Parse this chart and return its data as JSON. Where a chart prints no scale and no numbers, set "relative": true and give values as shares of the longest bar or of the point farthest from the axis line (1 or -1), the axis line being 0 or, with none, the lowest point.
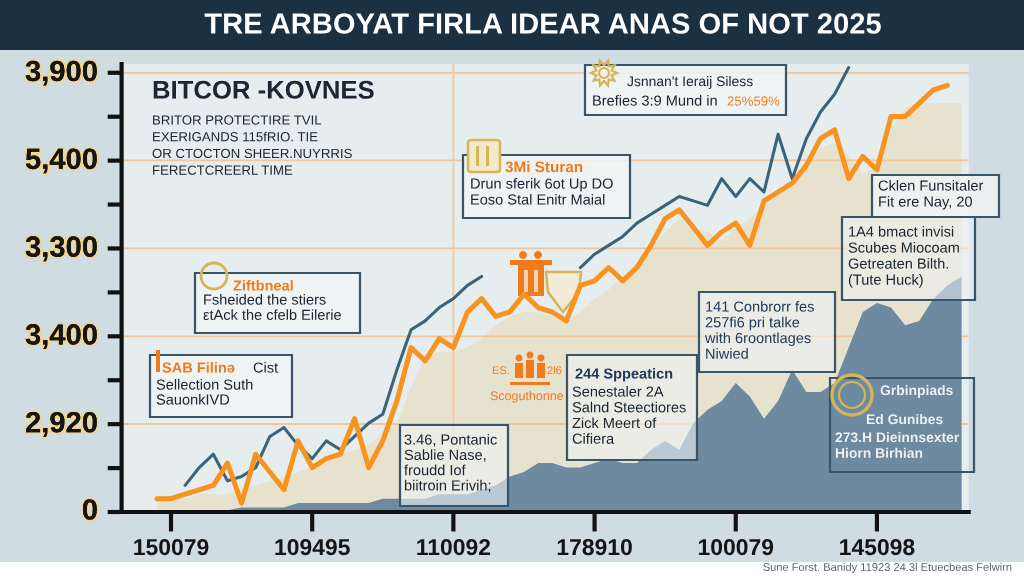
{
  "chart_data": {
    "type": "line",
    "title": "TRE ARBOYAT FIRLA IDEAR ANAS OF NOT 2025",
    "relative": true,
    "categories": [
      null,
      null,
      null,
      "150079",
      null,
      null,
      null,
      null,
      null,
      null,
      null,
      null,
      null,
      "109495",
      null,
      null,
      null,
      null,
      null,
      null,
      null,
      null,
      null,
      "110092",
      null,
      null,
      null,
      null,
      null,
      null,
      null,
      null,
      null,
      "178910",
      null,
      null,
      null,
      null,
      null,
      null,
      null,
      null,
      null,
      "100079",
      null,
      null,
      null,
      null,
      null,
      null,
      null,
      null,
      null,
      "145098",
      null,
      null,
      null,
      null,
      null,
      null
    ],
    "ref_lines": [
      {
        "axis": "x",
        "value": "110092",
        "color": "#f3c9a0"
      },
      {
        "axis": "y",
        "value": 0.198,
        "color": "#f3c597"
      },
      {
        "axis": "y",
        "value": 0.395,
        "color": "#f3c597"
      },
      {
        "axis": "y",
        "value": 0.593,
        "color": "#f3c597"
      },
      {
        "axis": "y",
        "value": 0.791,
        "color": "#f3c597"
      },
      {
        "axis": "y",
        "value": 0.988,
        "color": "#f3c597"
      }
    ],
    "series": [
      {
        "type": "area",
        "color": "#e7e2cd",
        "values": [
          null,
          null,
          0.03,
          0.03,
          0.03,
          0.04,
          0.04,
          0.04,
          0.05,
          0.06,
          0.07,
          0.08,
          0.09,
          0.1,
          0.11,
          0.13,
          0.14,
          0.15,
          0.18,
          0.2,
          0.28,
          0.35,
          0.36,
          0.36,
          0.37,
          0.39,
          0.42,
          0.44,
          0.45,
          0.45,
          0.44,
          0.43,
          0.45,
          0.48,
          0.5,
          0.53,
          0.56,
          0.59,
          0.63,
          0.66,
          0.64,
          0.63,
          0.61,
          0.64,
          0.66,
          0.69,
          0.72,
          0.75,
          0.78,
          0.82,
          0.83,
          0.8,
          0.76,
          0.78,
          0.86,
          0.91,
          0.92,
          0.92,
          0.92,
          0.92
        ]
      },
      {
        "type": "area",
        "color": "#6d8aa0",
        "values": [
          null,
          null,
          null,
          null,
          null,
          null,
          null,
          0.004,
          0.01,
          0.01,
          0.01,
          0.01,
          0.02,
          0.02,
          0.02,
          0.02,
          0.02,
          0.02,
          0.03,
          0.03,
          0.03,
          0.03,
          0.04,
          0.04,
          0.04,
          0.05,
          0.06,
          0.08,
          0.09,
          0.11,
          0.11,
          0.1,
          0.1,
          0.11,
          0.12,
          0.11,
          0.11,
          0.14,
          0.16,
          0.14,
          0.2,
          0.23,
          0.25,
          0.29,
          0.26,
          0.21,
          0.25,
          0.32,
          0.27,
          0.27,
          0.29,
          0.37,
          0.45,
          0.47,
          0.46,
          0.42,
          0.43,
          0.48,
          0.51,
          0.53
        ]
      },
      {
        "color": "#3c6479",
        "values": [
          null,
          null,
          null,
          null,
          0.06,
          0.1,
          0.13,
          0.07,
          0.08,
          0.1,
          0.17,
          0.19,
          0.15,
          0.12,
          0.16,
          0.14,
          0.17,
          0.2,
          0.22,
          0.32,
          0.41,
          0.43,
          0.46,
          0.48,
          0.51,
          0.53,
          null,
          null,
          null,
          null,
          null,
          null,
          0.55,
          0.58,
          0.6,
          0.62,
          0.65,
          0.67,
          0.69,
          0.71,
          0.7,
          0.69,
          0.75,
          0.71,
          0.75,
          0.72,
          0.85,
          0.75,
          0.84,
          0.9,
          0.94,
          1,
          null,
          null,
          null,
          null,
          null,
          null,
          null,
          null
        ]
      },
      {
        "color": "#f7931e",
        "values": [
          null,
          null,
          0.03,
          0.03,
          0.04,
          0.05,
          0.06,
          0.11,
          0.02,
          0.13,
          0.09,
          0.05,
          0.16,
          0.1,
          0.12,
          0.13,
          0.21,
          0.1,
          0.16,
          0.25,
          0.37,
          0.34,
          0.39,
          0.37,
          0.45,
          0.48,
          0.44,
          0.45,
          0.49,
          0.46,
          0.45,
          0.43,
          0.51,
          0.52,
          0.55,
          0.52,
          0.55,
          0.6,
          0.66,
          0.68,
          0.64,
          0.6,
          0.63,
          0.65,
          0.6,
          0.7,
          0.72,
          0.74,
          0.78,
          0.84,
          0.86,
          0.75,
          0.8,
          0.77,
          0.89,
          0.89,
          0.92,
          0.95,
          0.96,
          null
        ]
      }
    ],
    "annotations": [
      "BITCOR -KOVNES",
      "BRITOR PROTECTIRE TVIL\nEXERIGANDS 115fRIO. TIE\nOR CTOCTON SHEER.NUYRRIS\nFERECTCREERL TIME",
      "Jsnnan't Ieraij Siless",
      "Brefies 3:9 Mund in",
      "25%59%",
      "3Mi Sturan",
      "Drun sferik 6ot Up DO\nEoso Stal Enitr Maial",
      "Ziftbneal",
      "Fsheided the stiers\nεtAck the cfelb Eilerie",
      "SAB Filinǝ",
      "Cist",
      "Sellection Suth\nSauonkIVD",
      "3.46, Pontanic\nSablie Nase,\nfroudd Iof\nbiitroin Erivih;",
      "ES.",
      "2l6",
      "Scoguthonne",
      "244 Sppeaticn",
      "Senestaler 2A\nSalnd Steectiores\nZick Meert of\nCifiera",
      "141 Conbrorr fes\n257fi6 pri talke\nwith 6roontlages\nNiwied",
      "Cklen Funsitaler\nFit ere Nay, 20",
      "1A4 bmact invisi\nScubes Miocoam\nGetreaten Bilth.\n(Tute Huck)",
      "Grbinpiads",
      "Ed Gunibes",
      "273.H Dieinnsexter\nHiorn Birhian",
      "Sune Forst. Banidy 11923 24.3l Etuecbeas Felwirn",
      "3,900",
      "5,400",
      "3,300",
      "3,400",
      "2,920",
      "0"
    ]
  }
}
